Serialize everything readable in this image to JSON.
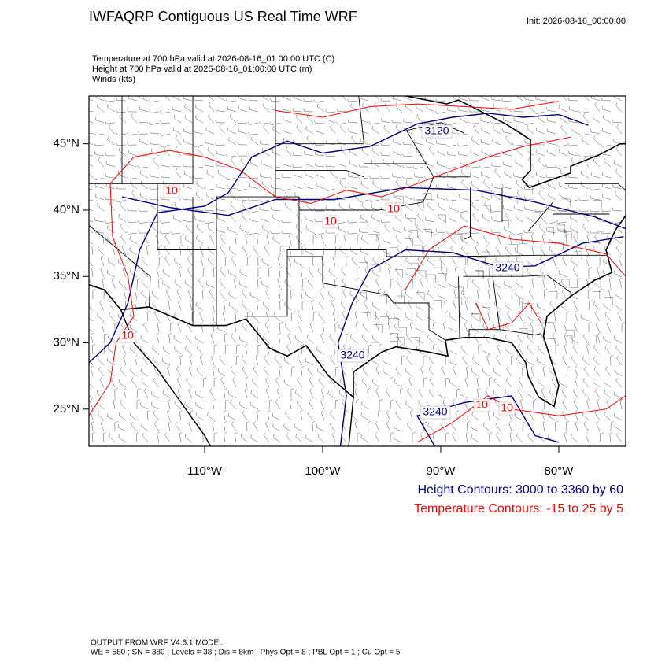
{
  "header": {
    "title": "IWFAQRP Contiguous US Real Time WRF",
    "init": "Init: 2026-08-16_00:00:00"
  },
  "fields": [
    "Temperature at 700 hPa valid at 2026-08-16_01:00:00 UTC   (C)",
    "Height at 700 hPa valid at 2026-08-16_01:00:00 UTC   (m)",
    "Winds   (kts)"
  ],
  "map": {
    "lon_range": [
      -119.8,
      -74.33
    ],
    "lat_range": [
      22.2,
      48.6
    ],
    "lon_ticks": [
      {
        "value": -110,
        "label": "110°W"
      },
      {
        "value": -100,
        "label": "100°W"
      },
      {
        "value": -90,
        "label": "90°W"
      },
      {
        "value": -80,
        "label": "80°W"
      }
    ],
    "lat_ticks": [
      {
        "value": 45,
        "label": "45°N"
      },
      {
        "value": 40,
        "label": "40°N"
      },
      {
        "value": 35,
        "label": "35°N"
      },
      {
        "value": 30,
        "label": "30°N"
      },
      {
        "value": 25,
        "label": "25°N"
      }
    ],
    "height_contour_labels": [
      "3120",
      "3240",
      "3240",
      "3240"
    ],
    "temperature_contour_labels": [
      "10",
      "10",
      "10",
      "10",
      "10",
      "10"
    ]
  },
  "legend": {
    "height": "Height Contours: 3000 to 3360 by 60",
    "temperature": "Temperature Contours: -15 to 25 by 5"
  },
  "footer": {
    "model": "OUTPUT FROM WRF V4.6.1 MODEL",
    "options": "WE = 580 ; SN = 380 ; Levels = 38 ; Dis = 8km ; Phys Opt = 8 ; PBL Opt = 1 ; Cu Opt = 5"
  }
}
